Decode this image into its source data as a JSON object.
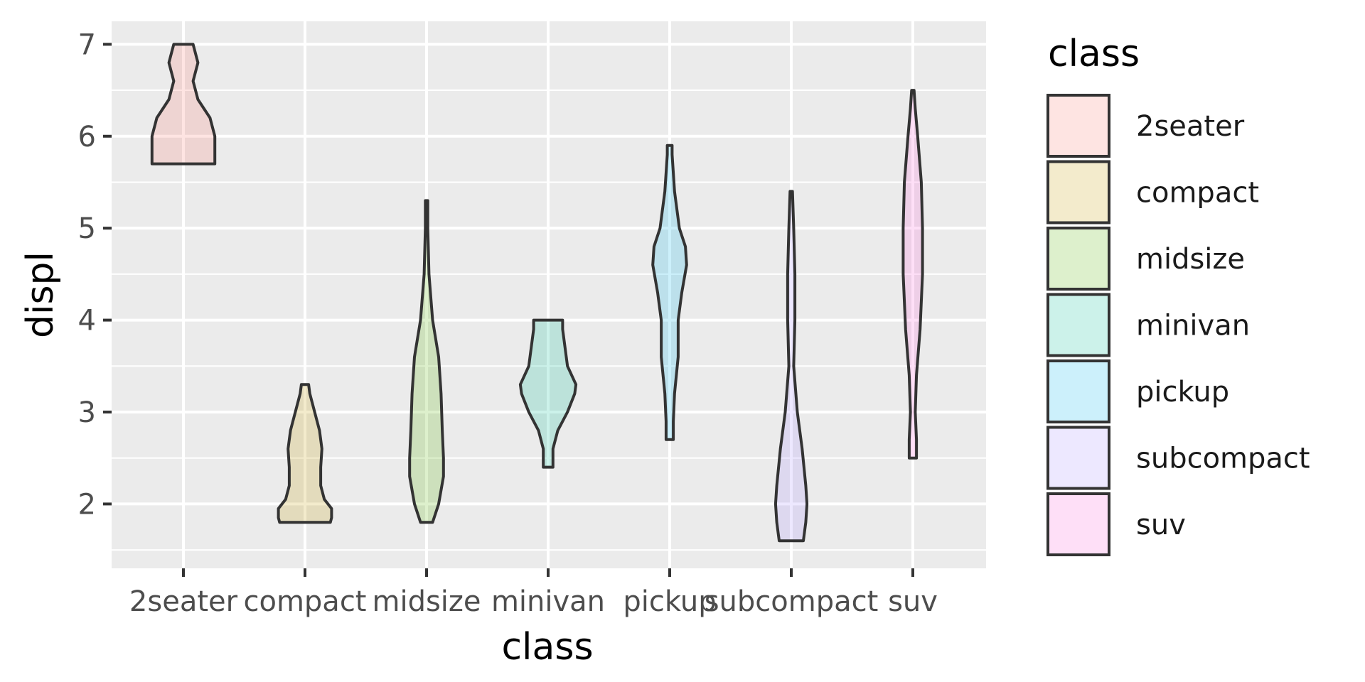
{
  "chart_data": {
    "type": "violin",
    "xlabel": "class",
    "ylabel": "displ",
    "ylim": [
      1.3,
      7.25
    ],
    "yticks": [
      2,
      3,
      4,
      5,
      6,
      7
    ],
    "categories": [
      "2seater",
      "compact",
      "midsize",
      "minivan",
      "pickup",
      "subcompact",
      "suv"
    ],
    "legend": {
      "title": "class",
      "position": "right"
    },
    "colors": [
      "#F8766D",
      "#C49A00",
      "#53B400",
      "#00C094",
      "#00B6EB",
      "#A58AFF",
      "#FB61D7"
    ],
    "panel_background": "#EBEBEB",
    "fill_alpha": 0.2,
    "grid": true,
    "violins": [
      {
        "category": "2seater",
        "min": 5.7,
        "max": 7.0,
        "profile": [
          [
            5.7,
            0.26
          ],
          [
            5.8,
            0.26
          ],
          [
            6.0,
            0.26
          ],
          [
            6.2,
            0.22
          ],
          [
            6.4,
            0.12
          ],
          [
            6.6,
            0.08
          ],
          [
            6.8,
            0.12
          ],
          [
            6.9,
            0.1
          ],
          [
            7.0,
            0.08
          ]
        ]
      },
      {
        "category": "compact",
        "min": 1.8,
        "max": 3.3,
        "profile": [
          [
            1.8,
            0.21
          ],
          [
            1.85,
            0.22
          ],
          [
            1.95,
            0.22
          ],
          [
            2.05,
            0.16
          ],
          [
            2.2,
            0.13
          ],
          [
            2.4,
            0.13
          ],
          [
            2.6,
            0.14
          ],
          [
            2.8,
            0.12
          ],
          [
            3.0,
            0.08
          ],
          [
            3.2,
            0.04
          ],
          [
            3.3,
            0.03
          ]
        ]
      },
      {
        "category": "midsize",
        "min": 1.8,
        "max": 5.3,
        "profile": [
          [
            1.8,
            0.05
          ],
          [
            2.0,
            0.1
          ],
          [
            2.3,
            0.14
          ],
          [
            2.5,
            0.14
          ],
          [
            2.8,
            0.13
          ],
          [
            3.2,
            0.12
          ],
          [
            3.6,
            0.1
          ],
          [
            4.0,
            0.05
          ],
          [
            4.5,
            0.02
          ],
          [
            5.0,
            0.01
          ],
          [
            5.3,
            0.01
          ]
        ]
      },
      {
        "category": "minivan",
        "min": 2.4,
        "max": 4.0,
        "profile": [
          [
            2.4,
            0.04
          ],
          [
            2.6,
            0.04
          ],
          [
            2.8,
            0.08
          ],
          [
            3.0,
            0.16
          ],
          [
            3.2,
            0.22
          ],
          [
            3.3,
            0.23
          ],
          [
            3.5,
            0.16
          ],
          [
            3.7,
            0.14
          ],
          [
            3.9,
            0.12
          ],
          [
            4.0,
            0.12
          ]
        ]
      },
      {
        "category": "pickup",
        "min": 2.7,
        "max": 5.9,
        "profile": [
          [
            2.7,
            0.03
          ],
          [
            2.9,
            0.03
          ],
          [
            3.2,
            0.04
          ],
          [
            3.6,
            0.07
          ],
          [
            4.0,
            0.07
          ],
          [
            4.3,
            0.1
          ],
          [
            4.6,
            0.14
          ],
          [
            4.8,
            0.13
          ],
          [
            5.0,
            0.08
          ],
          [
            5.4,
            0.04
          ],
          [
            5.8,
            0.02
          ],
          [
            5.9,
            0.02
          ]
        ]
      },
      {
        "category": "subcompact",
        "min": 1.6,
        "max": 5.4,
        "profile": [
          [
            1.6,
            0.1
          ],
          [
            1.8,
            0.12
          ],
          [
            2.0,
            0.13
          ],
          [
            2.2,
            0.12
          ],
          [
            2.6,
            0.09
          ],
          [
            3.0,
            0.05
          ],
          [
            3.5,
            0.02
          ],
          [
            4.0,
            0.03
          ],
          [
            4.5,
            0.03
          ],
          [
            5.0,
            0.02
          ],
          [
            5.4,
            0.01
          ]
        ]
      },
      {
        "category": "suv",
        "min": 2.5,
        "max": 6.5,
        "profile": [
          [
            2.5,
            0.03
          ],
          [
            2.7,
            0.03
          ],
          [
            3.0,
            0.02
          ],
          [
            3.4,
            0.03
          ],
          [
            3.9,
            0.06
          ],
          [
            4.5,
            0.08
          ],
          [
            5.0,
            0.08
          ],
          [
            5.5,
            0.07
          ],
          [
            6.0,
            0.04
          ],
          [
            6.3,
            0.02
          ],
          [
            6.5,
            0.01
          ]
        ]
      }
    ]
  }
}
